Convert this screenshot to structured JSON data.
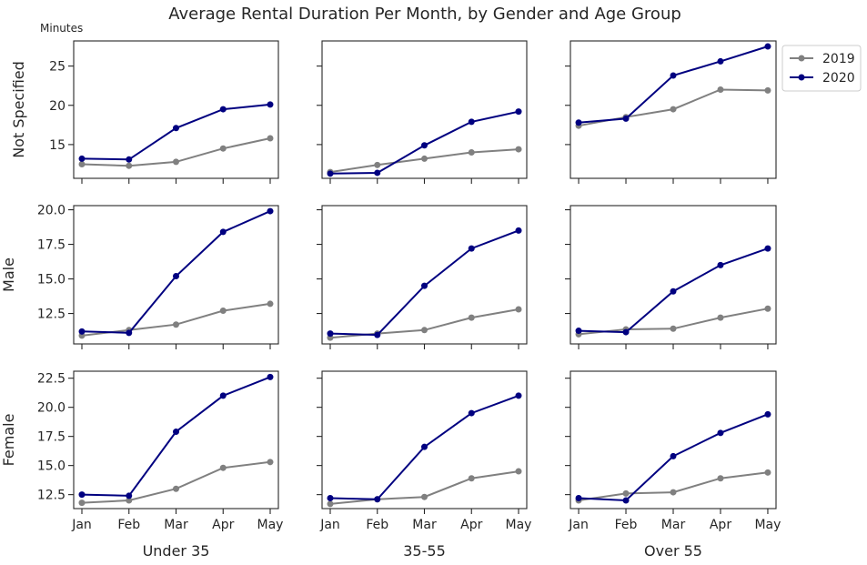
{
  "title": "Average Rental Duration Per Month, by Gender and Age Group",
  "unit_label": "Minutes",
  "colors": {
    "2019": "#808080",
    "2020": "#000080"
  },
  "chart_data": {
    "type": "line",
    "layout": "3x3 small multiples, shared x within columns, shared y within rows",
    "title": "Average Rental Duration Per Month, by Gender and Age Group",
    "ylabel": "Minutes",
    "categories": [
      "Jan",
      "Feb",
      "Mar",
      "Apr",
      "May"
    ],
    "columns": [
      "Under 35",
      "35-55",
      "Over 55"
    ],
    "rows": [
      {
        "label": "Not Specified",
        "ylim": [
          10.7,
          28.2
        ],
        "yticks": [
          "15",
          "20",
          "25"
        ],
        "ytick_values": [
          15,
          20,
          25
        ]
      },
      {
        "label": "Male",
        "ylim": [
          10.3,
          20.3
        ],
        "yticks": [
          "12.5",
          "15.0",
          "17.5",
          "20.0"
        ],
        "ytick_values": [
          12.5,
          15,
          17.5,
          20
        ]
      },
      {
        "label": "Female",
        "ylim": [
          11.3,
          23.1
        ],
        "yticks": [
          "12.5",
          "15.0",
          "17.5",
          "20.0",
          "22.5"
        ],
        "ytick_values": [
          12.5,
          15,
          17.5,
          20,
          22.5
        ]
      }
    ],
    "legend": {
      "position": "outside-top-right",
      "entries": [
        "2019",
        "2020"
      ]
    },
    "grid": false,
    "panels": [
      {
        "row": "Not Specified",
        "col": "Under 35",
        "series": [
          {
            "name": "2019",
            "values": [
              12.5,
              12.3,
              12.8,
              14.5,
              15.8
            ]
          },
          {
            "name": "2020",
            "values": [
              13.2,
              13.1,
              17.1,
              19.5,
              20.1
            ]
          }
        ]
      },
      {
        "row": "Not Specified",
        "col": "35-55",
        "series": [
          {
            "name": "2019",
            "values": [
              11.5,
              12.4,
              13.2,
              14.0,
              14.4
            ]
          },
          {
            "name": "2020",
            "values": [
              11.3,
              11.4,
              14.9,
              17.9,
              19.2
            ]
          }
        ]
      },
      {
        "row": "Not Specified",
        "col": "Over 55",
        "series": [
          {
            "name": "2019",
            "values": [
              17.4,
              18.5,
              19.5,
              22.0,
              21.9
            ]
          },
          {
            "name": "2020",
            "values": [
              17.8,
              18.3,
              23.8,
              25.6,
              27.5
            ]
          }
        ]
      },
      {
        "row": "Male",
        "col": "Under 35",
        "series": [
          {
            "name": "2019",
            "values": [
              10.9,
              11.3,
              11.7,
              12.7,
              13.2
            ]
          },
          {
            "name": "2020",
            "values": [
              11.2,
              11.1,
              15.2,
              18.4,
              19.9
            ]
          }
        ]
      },
      {
        "row": "Male",
        "col": "35-55",
        "series": [
          {
            "name": "2019",
            "values": [
              10.75,
              11.05,
              11.3,
              12.2,
              12.8
            ]
          },
          {
            "name": "2020",
            "values": [
              11.05,
              10.95,
              14.5,
              17.2,
              18.5
            ]
          }
        ]
      },
      {
        "row": "Male",
        "col": "Over 55",
        "series": [
          {
            "name": "2019",
            "values": [
              11.0,
              11.35,
              11.4,
              12.2,
              12.85
            ]
          },
          {
            "name": "2020",
            "values": [
              11.25,
              11.15,
              14.1,
              16.0,
              17.2
            ]
          }
        ]
      },
      {
        "row": "Female",
        "col": "Under 35",
        "series": [
          {
            "name": "2019",
            "values": [
              11.8,
              12.0,
              13.0,
              14.8,
              15.3
            ]
          },
          {
            "name": "2020",
            "values": [
              12.5,
              12.4,
              17.9,
              21.0,
              22.6
            ]
          }
        ]
      },
      {
        "row": "Female",
        "col": "35-55",
        "series": [
          {
            "name": "2019",
            "values": [
              11.7,
              12.1,
              12.3,
              13.9,
              14.5
            ]
          },
          {
            "name": "2020",
            "values": [
              12.2,
              12.1,
              16.6,
              19.5,
              21.0
            ]
          }
        ]
      },
      {
        "row": "Female",
        "col": "Over 55",
        "series": [
          {
            "name": "2019",
            "values": [
              12.0,
              12.6,
              12.7,
              13.9,
              14.4
            ]
          },
          {
            "name": "2020",
            "values": [
              12.2,
              12.0,
              15.8,
              17.8,
              19.4
            ]
          }
        ]
      }
    ]
  }
}
